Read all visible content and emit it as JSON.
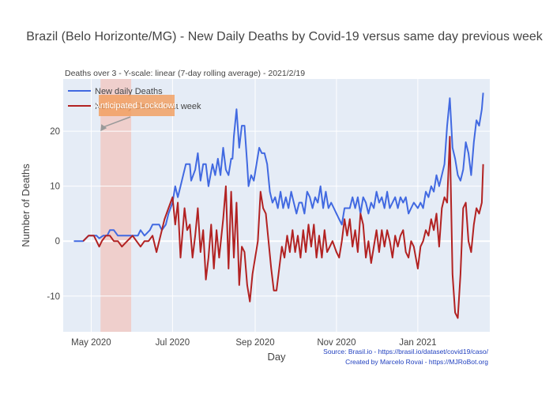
{
  "chart_data": {
    "type": "line",
    "title": "Brazil (Belo Horizonte/MG) - New Daily Deaths by Covid-19 versus same day previous week",
    "subtitle": "Deaths over 3 - Y-scale: linear (7-day rolling average) - 2021/2/19",
    "xlabel": "Day",
    "ylabel": "Number of Deaths",
    "x_ticks": [
      "May 2020",
      "Jul 2020",
      "Sep 2020",
      "Nov 2020",
      "Jan 2021"
    ],
    "x_tick_dates": [
      "2020-05-01",
      "2020-07-01",
      "2020-09-01",
      "2020-11-01",
      "2021-01-01"
    ],
    "y_ticks": [
      -10,
      0,
      10,
      20
    ],
    "xlim": [
      "2020-04-10",
      "2021-02-24"
    ],
    "ylim": [
      -16.5,
      29.5
    ],
    "grid": true,
    "legend_position": "top-left",
    "shaded_region": {
      "start": "2020-05-08",
      "end": "2020-05-31",
      "color": "#f1c6bd"
    },
    "annotation": {
      "text": "Anticipated Lockdown",
      "x": "2020-05-08",
      "y": 20
    },
    "source_lines": [
      "Source: Brasil.io - https://brasil.io/dataset/covid19/caso/",
      "Created by Marcelo Rovai - https://MJRoBot.org"
    ],
    "series": [
      {
        "name": "New daily Deaths",
        "color": "#4169e1",
        "points": [
          [
            "2020-04-18",
            0
          ],
          [
            "2020-04-25",
            0
          ],
          [
            "2020-04-29",
            1
          ],
          [
            "2020-05-05",
            1
          ],
          [
            "2020-05-07",
            0.5
          ],
          [
            "2020-05-10",
            1
          ],
          [
            "2020-05-13",
            1
          ],
          [
            "2020-05-15",
            2
          ],
          [
            "2020-05-18",
            2
          ],
          [
            "2020-05-21",
            1
          ],
          [
            "2020-05-28",
            1
          ],
          [
            "2020-06-01",
            1
          ],
          [
            "2020-06-05",
            1
          ],
          [
            "2020-06-07",
            2
          ],
          [
            "2020-06-10",
            1
          ],
          [
            "2020-06-14",
            2
          ],
          [
            "2020-06-16",
            3
          ],
          [
            "2020-06-21",
            3
          ],
          [
            "2020-06-23",
            2
          ],
          [
            "2020-06-26",
            3
          ],
          [
            "2020-06-28",
            5
          ],
          [
            "2020-07-01",
            7
          ],
          [
            "2020-07-03",
            10
          ],
          [
            "2020-07-05",
            8
          ],
          [
            "2020-07-07",
            10
          ],
          [
            "2020-07-09",
            12
          ],
          [
            "2020-07-11",
            14
          ],
          [
            "2020-07-14",
            14
          ],
          [
            "2020-07-15",
            11
          ],
          [
            "2020-07-18",
            13
          ],
          [
            "2020-07-20",
            16
          ],
          [
            "2020-07-22",
            11
          ],
          [
            "2020-07-24",
            14
          ],
          [
            "2020-07-26",
            14
          ],
          [
            "2020-07-28",
            10
          ],
          [
            "2020-07-31",
            14
          ],
          [
            "2020-08-02",
            12
          ],
          [
            "2020-08-04",
            15
          ],
          [
            "2020-08-06",
            12
          ],
          [
            "2020-08-08",
            17
          ],
          [
            "2020-08-10",
            13
          ],
          [
            "2020-08-12",
            12
          ],
          [
            "2020-08-14",
            15
          ],
          [
            "2020-08-15",
            15
          ],
          [
            "2020-08-16",
            19
          ],
          [
            "2020-08-18",
            24
          ],
          [
            "2020-08-20",
            17
          ],
          [
            "2020-08-22",
            21
          ],
          [
            "2020-08-24",
            21
          ],
          [
            "2020-08-26",
            14
          ],
          [
            "2020-08-27",
            10
          ],
          [
            "2020-08-29",
            12
          ],
          [
            "2020-08-31",
            11
          ],
          [
            "2020-09-02",
            14
          ],
          [
            "2020-09-04",
            17
          ],
          [
            "2020-09-06",
            16
          ],
          [
            "2020-09-08",
            16
          ],
          [
            "2020-09-10",
            14
          ],
          [
            "2020-09-12",
            9
          ],
          [
            "2020-09-14",
            7
          ],
          [
            "2020-09-16",
            8
          ],
          [
            "2020-09-18",
            6
          ],
          [
            "2020-09-20",
            9
          ],
          [
            "2020-09-22",
            6
          ],
          [
            "2020-09-24",
            8
          ],
          [
            "2020-09-26",
            6
          ],
          [
            "2020-09-28",
            9
          ],
          [
            "2020-09-30",
            7
          ],
          [
            "2020-10-02",
            5
          ],
          [
            "2020-10-04",
            7
          ],
          [
            "2020-10-06",
            7
          ],
          [
            "2020-10-08",
            5
          ],
          [
            "2020-10-10",
            9
          ],
          [
            "2020-10-12",
            8
          ],
          [
            "2020-10-14",
            6
          ],
          [
            "2020-10-16",
            8
          ],
          [
            "2020-10-18",
            7
          ],
          [
            "2020-10-20",
            10
          ],
          [
            "2020-10-22",
            6
          ],
          [
            "2020-10-24",
            9
          ],
          [
            "2020-10-26",
            6
          ],
          [
            "2020-10-28",
            7
          ],
          [
            "2020-10-30",
            6
          ],
          [
            "2020-11-01",
            5
          ],
          [
            "2020-11-03",
            4
          ],
          [
            "2020-11-05",
            3
          ],
          [
            "2020-11-07",
            6
          ],
          [
            "2020-11-09",
            6
          ],
          [
            "2020-11-11",
            6
          ],
          [
            "2020-11-13",
            8
          ],
          [
            "2020-11-15",
            6
          ],
          [
            "2020-11-17",
            8
          ],
          [
            "2020-11-19",
            5
          ],
          [
            "2020-11-21",
            8
          ],
          [
            "2020-11-23",
            7
          ],
          [
            "2020-11-25",
            5
          ],
          [
            "2020-11-27",
            7
          ],
          [
            "2020-11-29",
            6
          ],
          [
            "2020-12-01",
            9
          ],
          [
            "2020-12-03",
            7
          ],
          [
            "2020-12-05",
            8
          ],
          [
            "2020-12-07",
            6
          ],
          [
            "2020-12-09",
            9
          ],
          [
            "2020-12-11",
            6
          ],
          [
            "2020-12-13",
            7
          ],
          [
            "2020-12-15",
            8
          ],
          [
            "2020-12-17",
            6
          ],
          [
            "2020-12-19",
            8
          ],
          [
            "2020-12-21",
            7
          ],
          [
            "2020-12-23",
            8
          ],
          [
            "2020-12-25",
            5
          ],
          [
            "2020-12-27",
            6
          ],
          [
            "2020-12-29",
            7
          ],
          [
            "2021-01-01",
            6
          ],
          [
            "2021-01-03",
            7
          ],
          [
            "2021-01-05",
            6
          ],
          [
            "2021-01-07",
            9
          ],
          [
            "2021-01-09",
            8
          ],
          [
            "2021-01-11",
            10
          ],
          [
            "2021-01-13",
            9
          ],
          [
            "2021-01-15",
            12
          ],
          [
            "2021-01-17",
            10
          ],
          [
            "2021-01-19",
            12
          ],
          [
            "2021-01-21",
            14
          ],
          [
            "2021-01-23",
            21
          ],
          [
            "2021-01-25",
            26
          ],
          [
            "2021-01-27",
            17
          ],
          [
            "2021-01-29",
            15
          ],
          [
            "2021-01-31",
            12
          ],
          [
            "2021-02-02",
            11
          ],
          [
            "2021-02-04",
            13
          ],
          [
            "2021-02-06",
            18
          ],
          [
            "2021-02-08",
            16
          ],
          [
            "2021-02-10",
            12
          ],
          [
            "2021-02-12",
            18
          ],
          [
            "2021-02-14",
            22
          ],
          [
            "2021-02-16",
            21
          ],
          [
            "2021-02-18",
            24
          ],
          [
            "2021-02-19",
            27
          ]
        ]
      },
      {
        "name": "New daily Deaths last week",
        "color": "#b22222",
        "points": [
          [
            "2020-04-25",
            0
          ],
          [
            "2020-04-29",
            1
          ],
          [
            "2020-05-03",
            1
          ],
          [
            "2020-05-05",
            0
          ],
          [
            "2020-05-07",
            -1
          ],
          [
            "2020-05-09",
            0
          ],
          [
            "2020-05-12",
            1
          ],
          [
            "2020-05-15",
            1
          ],
          [
            "2020-05-18",
            0
          ],
          [
            "2020-05-21",
            0
          ],
          [
            "2020-05-24",
            -1
          ],
          [
            "2020-05-28",
            0
          ],
          [
            "2020-06-01",
            1
          ],
          [
            "2020-06-04",
            0
          ],
          [
            "2020-06-07",
            -1
          ],
          [
            "2020-06-10",
            0
          ],
          [
            "2020-06-13",
            0
          ],
          [
            "2020-06-16",
            1
          ],
          [
            "2020-06-19",
            -2
          ],
          [
            "2020-06-22",
            1
          ],
          [
            "2020-06-25",
            4
          ],
          [
            "2020-06-28",
            6
          ],
          [
            "2020-07-01",
            8
          ],
          [
            "2020-07-03",
            3
          ],
          [
            "2020-07-05",
            7
          ],
          [
            "2020-07-07",
            -3
          ],
          [
            "2020-07-10",
            6
          ],
          [
            "2020-07-12",
            2
          ],
          [
            "2020-07-14",
            3
          ],
          [
            "2020-07-16",
            -3
          ],
          [
            "2020-07-18",
            1
          ],
          [
            "2020-07-20",
            6
          ],
          [
            "2020-07-22",
            -2
          ],
          [
            "2020-07-24",
            2
          ],
          [
            "2020-07-26",
            -7
          ],
          [
            "2020-07-28",
            -3
          ],
          [
            "2020-07-30",
            3
          ],
          [
            "2020-08-01",
            -5
          ],
          [
            "2020-08-03",
            2
          ],
          [
            "2020-08-05",
            -3
          ],
          [
            "2020-08-08",
            4
          ],
          [
            "2020-08-10",
            10
          ],
          [
            "2020-08-12",
            -5
          ],
          [
            "2020-08-14",
            9
          ],
          [
            "2020-08-16",
            -3
          ],
          [
            "2020-08-18",
            7
          ],
          [
            "2020-08-20",
            -8
          ],
          [
            "2020-08-22",
            -1
          ],
          [
            "2020-08-24",
            -2
          ],
          [
            "2020-08-26",
            -8
          ],
          [
            "2020-08-28",
            -11
          ],
          [
            "2020-08-30",
            -6
          ],
          [
            "2020-09-01",
            -3
          ],
          [
            "2020-09-03",
            0
          ],
          [
            "2020-09-05",
            9
          ],
          [
            "2020-09-07",
            6
          ],
          [
            "2020-09-09",
            5
          ],
          [
            "2020-09-11",
            0
          ],
          [
            "2020-09-13",
            -5
          ],
          [
            "2020-09-15",
            -9
          ],
          [
            "2020-09-17",
            -9
          ],
          [
            "2020-09-19",
            -5
          ],
          [
            "2020-09-21",
            -1
          ],
          [
            "2020-09-23",
            -3
          ],
          [
            "2020-09-25",
            1
          ],
          [
            "2020-09-27",
            -2
          ],
          [
            "2020-09-29",
            2
          ],
          [
            "2020-10-01",
            -2
          ],
          [
            "2020-10-03",
            1
          ],
          [
            "2020-10-05",
            -3
          ],
          [
            "2020-10-07",
            2
          ],
          [
            "2020-10-09",
            -2
          ],
          [
            "2020-10-11",
            3
          ],
          [
            "2020-10-13",
            -1
          ],
          [
            "2020-10-15",
            3
          ],
          [
            "2020-10-17",
            -3
          ],
          [
            "2020-10-19",
            1
          ],
          [
            "2020-10-21",
            -3
          ],
          [
            "2020-10-23",
            2
          ],
          [
            "2020-10-25",
            -2
          ],
          [
            "2020-10-27",
            -1
          ],
          [
            "2020-10-29",
            0
          ],
          [
            "2020-11-01",
            -2
          ],
          [
            "2020-11-03",
            -3
          ],
          [
            "2020-11-05",
            0
          ],
          [
            "2020-11-07",
            4
          ],
          [
            "2020-11-09",
            1
          ],
          [
            "2020-11-11",
            4
          ],
          [
            "2020-11-13",
            -1
          ],
          [
            "2020-11-15",
            2
          ],
          [
            "2020-11-17",
            -2
          ],
          [
            "2020-11-19",
            5
          ],
          [
            "2020-11-21",
            3
          ],
          [
            "2020-11-23",
            -3
          ],
          [
            "2020-11-25",
            0
          ],
          [
            "2020-11-27",
            -4
          ],
          [
            "2020-11-29",
            -1
          ],
          [
            "2020-12-01",
            2
          ],
          [
            "2020-12-03",
            -2
          ],
          [
            "2020-12-05",
            2
          ],
          [
            "2020-12-07",
            -1
          ],
          [
            "2020-12-09",
            2
          ],
          [
            "2020-12-11",
            0
          ],
          [
            "2020-12-13",
            -3
          ],
          [
            "2020-12-15",
            1
          ],
          [
            "2020-12-17",
            -1
          ],
          [
            "2020-12-19",
            1
          ],
          [
            "2020-12-21",
            2
          ],
          [
            "2020-12-23",
            -2
          ],
          [
            "2020-12-25",
            -3
          ],
          [
            "2020-12-27",
            0
          ],
          [
            "2020-12-29",
            -1
          ],
          [
            "2021-01-01",
            -5
          ],
          [
            "2021-01-03",
            -1
          ],
          [
            "2021-01-05",
            0
          ],
          [
            "2021-01-07",
            2
          ],
          [
            "2021-01-09",
            1
          ],
          [
            "2021-01-11",
            4
          ],
          [
            "2021-01-13",
            2
          ],
          [
            "2021-01-15",
            5
          ],
          [
            "2021-01-17",
            -1
          ],
          [
            "2021-01-19",
            6
          ],
          [
            "2021-01-21",
            8
          ],
          [
            "2021-01-23",
            7
          ],
          [
            "2021-01-25",
            19
          ],
          [
            "2021-01-27",
            -6
          ],
          [
            "2021-01-29",
            -13
          ],
          [
            "2021-01-31",
            -14
          ],
          [
            "2021-02-02",
            -6
          ],
          [
            "2021-02-04",
            6
          ],
          [
            "2021-02-06",
            7
          ],
          [
            "2021-02-08",
            0
          ],
          [
            "2021-02-10",
            -2
          ],
          [
            "2021-02-12",
            3
          ],
          [
            "2021-02-14",
            6
          ],
          [
            "2021-02-16",
            5
          ],
          [
            "2021-02-18",
            7
          ],
          [
            "2021-02-19",
            14
          ]
        ]
      }
    ]
  }
}
